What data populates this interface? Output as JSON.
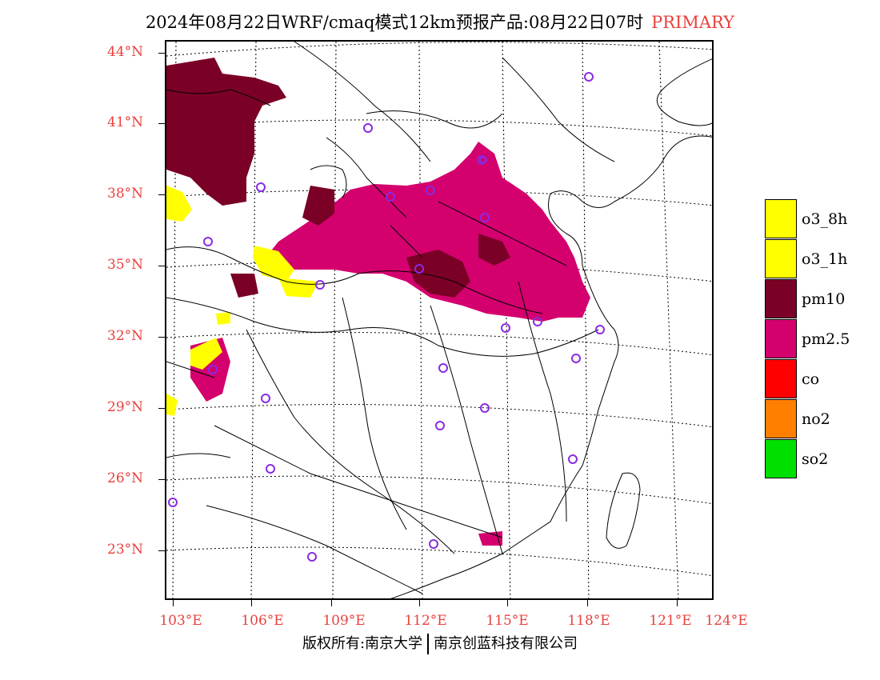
{
  "header": {
    "title": "2024年08月22日WRF/cmaq模式12km预报产品:08月22日07时",
    "category": "PRIMARY"
  },
  "axes": {
    "lat_labels": [
      "44°N",
      "41°N",
      "38°N",
      "35°N",
      "32°N",
      "29°N",
      "26°N",
      "23°N"
    ],
    "lon_labels": [
      "103°E",
      "106°E",
      "109°E",
      "112°E",
      "115°E",
      "118°E",
      "121°E",
      "124°E"
    ]
  },
  "legend": {
    "items": [
      {
        "label": "o3_8h",
        "color": "#ffff00"
      },
      {
        "label": "o3_1h",
        "color": "#ffff00"
      },
      {
        "label": "pm10",
        "color": "#7a0026"
      },
      {
        "label": "pm2.5",
        "color": "#d4006e"
      },
      {
        "label": "co",
        "color": "#ff0000"
      },
      {
        "label": "no2",
        "color": "#ff8000"
      },
      {
        "label": "so2",
        "color": "#00e000"
      }
    ]
  },
  "footer": {
    "left": "版权所有:南京大学",
    "right": "南京创蓝科技有限公司"
  },
  "colors": {
    "pm10": "#7a0026",
    "pm25": "#d4006e",
    "o3": "#ffff00",
    "station": "#8a2be2",
    "label_red": "#e8413e"
  }
}
